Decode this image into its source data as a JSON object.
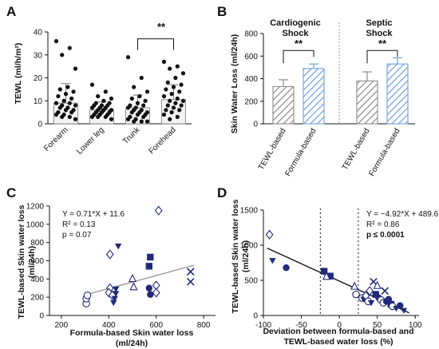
{
  "chart_data": [
    {
      "panel": "A",
      "type": "bar",
      "ylabel": "TEWL (ml/h/m²)",
      "ylim": [
        0,
        40
      ],
      "yticks": [
        0,
        10,
        20,
        30,
        40
      ],
      "categories": [
        "Forearm",
        "Lower leg",
        "Trunk",
        "Forehead"
      ],
      "means": [
        9,
        6,
        7,
        10.5
      ],
      "sd_upper": [
        17.5,
        9.5,
        12.5,
        17
      ],
      "points": [
        [
          36,
          33,
          30,
          24,
          16,
          15,
          14,
          13,
          12,
          11,
          10,
          9,
          9,
          8,
          8,
          7,
          7,
          6,
          6,
          5,
          5,
          4,
          4,
          3,
          3,
          2
        ],
        [
          17,
          14,
          12,
          11,
          10,
          9,
          9,
          8,
          8,
          8,
          7,
          7,
          7,
          6,
          6,
          6,
          5,
          5,
          5,
          4,
          4,
          4,
          3,
          3,
          3,
          2
        ],
        [
          29,
          20,
          16,
          14,
          12,
          11,
          10,
          9,
          8,
          8,
          7,
          7,
          6,
          6,
          5,
          5,
          5,
          4,
          4,
          3,
          3,
          2,
          2,
          1,
          1,
          1
        ],
        [
          27,
          25,
          24,
          22,
          20,
          18,
          17,
          16,
          15,
          14,
          13,
          12,
          11,
          10,
          10,
          9,
          8,
          8,
          7,
          6,
          6,
          5,
          4,
          3,
          2
        ]
      ],
      "significance": {
        "between": [
          "Trunk",
          "Forehead"
        ],
        "label": "**"
      }
    },
    {
      "panel": "B",
      "type": "bar",
      "ylabel": "Skin Water Loss (ml/24h)",
      "ylim": [
        0,
        800
      ],
      "yticks": [
        0,
        200,
        400,
        600,
        800
      ],
      "groups": [
        {
          "title_line1": "Cardiogenic",
          "title_line2": "Shock",
          "categories": [
            "TEWL-based",
            "Formula-based"
          ],
          "values": [
            330,
            490
          ],
          "error": [
            60,
            40
          ],
          "sig": "**"
        },
        {
          "title_line1": "Septic",
          "title_line2": "Shock",
          "categories": [
            "TEWL-based",
            "Formula-based"
          ],
          "values": [
            380,
            530
          ],
          "error": [
            80,
            55
          ],
          "sig": "**"
        }
      ]
    },
    {
      "panel": "C",
      "type": "scatter",
      "xlabel": "Formula-based Skin water loss (ml/24h)",
      "ylabel": "TEWL-based Skin water loss (ml/24h)",
      "xlim": [
        150,
        850
      ],
      "ylim": [
        0,
        1200
      ],
      "xticks": [
        200,
        400,
        600,
        800
      ],
      "yticks": [
        0,
        200,
        400,
        600,
        800,
        1000,
        1200
      ],
      "equation": "Y = 0.71*X + 11.6",
      "r2": "R² = 0.13",
      "p": "p   = 0.07",
      "fit": {
        "slope": 0.71,
        "intercept": 11.6,
        "x_range": [
          300,
          760
        ]
      },
      "points": [
        {
          "x": 305,
          "y": 130,
          "m": "circle-open"
        },
        {
          "x": 305,
          "y": 185,
          "m": "circle-open"
        },
        {
          "x": 310,
          "y": 220,
          "m": "circle-open"
        },
        {
          "x": 405,
          "y": 670,
          "m": "diamond-open"
        },
        {
          "x": 405,
          "y": 300,
          "m": "diamond-open"
        },
        {
          "x": 400,
          "y": 250,
          "m": "diamond-open"
        },
        {
          "x": 415,
          "y": 220,
          "m": "diamond-open"
        },
        {
          "x": 420,
          "y": 140,
          "m": "triangle-filled"
        },
        {
          "x": 425,
          "y": 185,
          "m": "triangle-filled"
        },
        {
          "x": 430,
          "y": 240,
          "m": "triangle-filled"
        },
        {
          "x": 430,
          "y": 290,
          "m": "triangle-filled"
        },
        {
          "x": 440,
          "y": 760,
          "m": "triangle-filled"
        },
        {
          "x": 500,
          "y": 400,
          "m": "triangle-open"
        },
        {
          "x": 505,
          "y": 310,
          "m": "triangle-open"
        },
        {
          "x": 575,
          "y": 640,
          "m": "square-filled"
        },
        {
          "x": 570,
          "y": 540,
          "m": "square-filled"
        },
        {
          "x": 570,
          "y": 300,
          "m": "circle-filled"
        },
        {
          "x": 575,
          "y": 230,
          "m": "circle-filled"
        },
        {
          "x": 610,
          "y": 1150,
          "m": "diamond-open"
        },
        {
          "x": 600,
          "y": 330,
          "m": "diamond-open"
        },
        {
          "x": 600,
          "y": 250,
          "m": "diamond-open"
        },
        {
          "x": 745,
          "y": 480,
          "m": "x"
        },
        {
          "x": 745,
          "y": 370,
          "m": "x"
        }
      ]
    },
    {
      "panel": "D",
      "type": "scatter",
      "xlabel": "Deviation between formula-based and TEWL-based water loss (%)",
      "ylabel": "TEWL-based Skin water loss (ml/24h)",
      "xlim": [
        -100,
        105
      ],
      "ylim": [
        0,
        1500
      ],
      "xticks": [
        -100,
        -50,
        0,
        50,
        100
      ],
      "yticks": [
        0,
        500,
        1000,
        1500
      ],
      "vlines": [
        -25,
        25
      ],
      "equation": "Y = −4.92*X + 489.6",
      "r2": "R² = 0.86",
      "p_label": "p ≤ ",
      "p_value": "0.0001",
      "fit": {
        "slope": -4.92,
        "intercept": 489.6,
        "x_range": [
          -95,
          92
        ]
      },
      "points": [
        {
          "x": -92,
          "y": 1150,
          "m": "diamond-open"
        },
        {
          "x": -88,
          "y": 780,
          "m": "triangle-filled"
        },
        {
          "x": -70,
          "y": 680,
          "m": "circle-filled"
        },
        {
          "x": -20,
          "y": 630,
          "m": "square-filled"
        },
        {
          "x": -12,
          "y": 560,
          "m": "square-filled"
        },
        {
          "x": -17,
          "y": 550,
          "m": "triangle-open"
        },
        {
          "x": 20,
          "y": 410,
          "m": "triangle-open"
        },
        {
          "x": 22,
          "y": 300,
          "m": "circle-open"
        },
        {
          "x": 30,
          "y": 250,
          "m": "circle-open"
        },
        {
          "x": 32,
          "y": 230,
          "m": "triangle-filled"
        },
        {
          "x": 35,
          "y": 280,
          "m": "diamond-open"
        },
        {
          "x": 38,
          "y": 200,
          "m": "circle-open"
        },
        {
          "x": 40,
          "y": 350,
          "m": "diamond-open"
        },
        {
          "x": 42,
          "y": 180,
          "m": "triangle-filled"
        },
        {
          "x": 45,
          "y": 480,
          "m": "x"
        },
        {
          "x": 48,
          "y": 300,
          "m": "square-filled"
        },
        {
          "x": 50,
          "y": 420,
          "m": "triangle-open"
        },
        {
          "x": 52,
          "y": 250,
          "m": "circle-filled"
        },
        {
          "x": 55,
          "y": 220,
          "m": "circle-open"
        },
        {
          "x": 58,
          "y": 180,
          "m": "circle-open"
        },
        {
          "x": 60,
          "y": 350,
          "m": "x"
        },
        {
          "x": 62,
          "y": 200,
          "m": "circle-filled"
        },
        {
          "x": 65,
          "y": 230,
          "m": "circle-filled"
        },
        {
          "x": 68,
          "y": 160,
          "m": "square-filled"
        },
        {
          "x": 70,
          "y": 130,
          "m": "circle-open"
        },
        {
          "x": 75,
          "y": 100,
          "m": "triangle-filled"
        },
        {
          "x": 80,
          "y": 140,
          "m": "circle-filled"
        },
        {
          "x": 85,
          "y": 70,
          "m": "triangle-filled"
        }
      ]
    }
  ],
  "panel_labels": {
    "a": "A",
    "b": "B",
    "c": "C",
    "d": "D"
  },
  "colors": {
    "navy": "#1f2a7a",
    "grey_hatch": "#8a8a8a",
    "blue_hatch": "#6f9fe0",
    "bar_fill": "#f2f2f2"
  }
}
